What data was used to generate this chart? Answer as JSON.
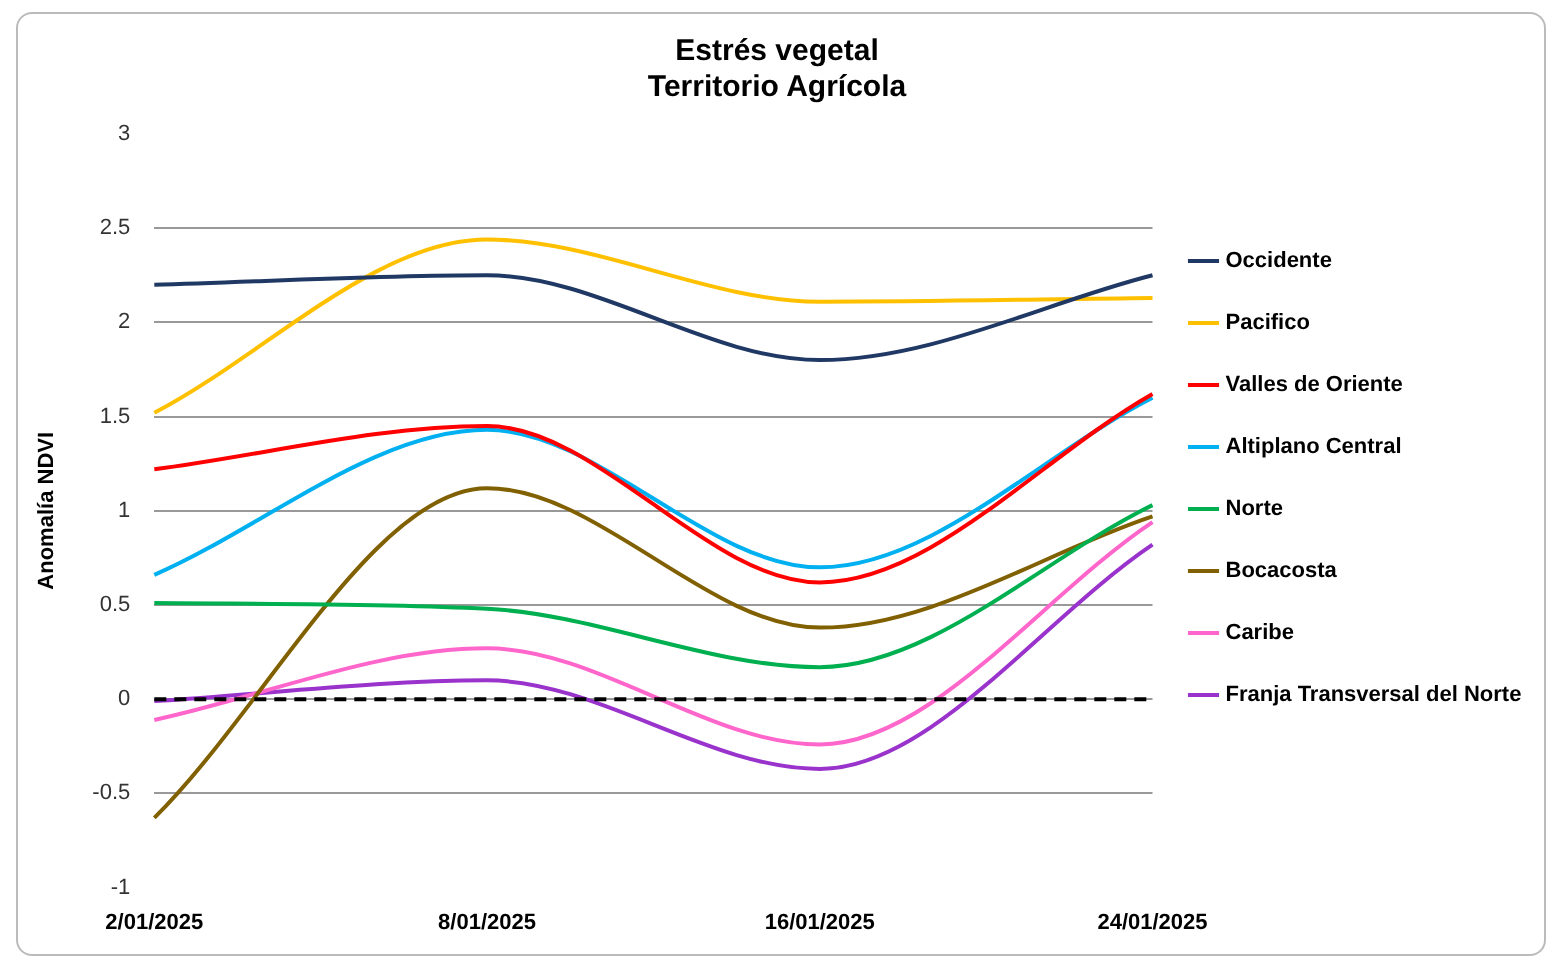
{
  "chart_data": {
    "type": "line",
    "title": "Estrés vegetal",
    "subtitle": "Territorio Agrícola",
    "ylabel": "Anomalía NDVI",
    "categories": [
      "2/01/2025",
      "8/01/2025",
      "16/01/2025",
      "24/01/2025"
    ],
    "series": [
      {
        "name": "Occidente",
        "color": "#203864",
        "values": [
          2.2,
          2.25,
          1.8,
          2.25
        ]
      },
      {
        "name": "Pacifico",
        "color": "#ffc000",
        "values": [
          1.52,
          2.44,
          2.11,
          2.13
        ]
      },
      {
        "name": "Valles de Oriente",
        "color": "#ff0000",
        "values": [
          1.22,
          1.45,
          0.62,
          1.62
        ]
      },
      {
        "name": "Altiplano Central",
        "color": "#00b0f0",
        "values": [
          0.66,
          1.43,
          0.7,
          1.6
        ]
      },
      {
        "name": "Norte",
        "color": "#00b050",
        "values": [
          0.51,
          0.48,
          0.17,
          1.03
        ]
      },
      {
        "name": "Bocacosta",
        "color": "#806000",
        "values": [
          -0.63,
          1.12,
          0.38,
          0.97
        ]
      },
      {
        "name": "Caribe",
        "color": "#ff66cc",
        "values": [
          -0.11,
          0.27,
          -0.24,
          0.94
        ]
      },
      {
        "name": "Franja Transversal del Norte",
        "color": "#9933cc",
        "values": [
          -0.01,
          0.1,
          -0.37,
          0.82
        ]
      }
    ],
    "ylim": [
      -1,
      3
    ],
    "yticks": [
      -1,
      -0.5,
      0,
      0.5,
      1,
      1.5,
      2,
      2.5,
      3
    ],
    "ref_lines": [
      {
        "axis": "y",
        "value": 0,
        "color": "#000000",
        "line_style": "dashed"
      }
    ],
    "grid": "y",
    "legend": "right",
    "marker": "none",
    "line_style": "solid"
  }
}
